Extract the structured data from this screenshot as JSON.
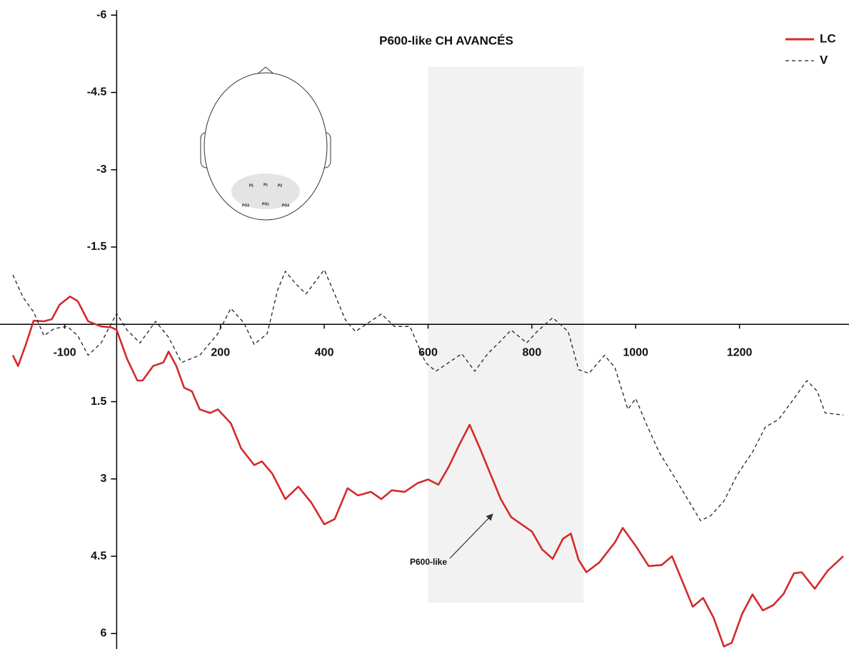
{
  "chart_data": {
    "type": "line",
    "title": "P600-like CH AVANCÉS",
    "xlim": [
      -200,
      1400
    ],
    "xticks": [
      -100,
      200,
      400,
      600,
      800,
      1000,
      1200
    ],
    "ylim": [
      -6.1,
      6.3
    ],
    "yticks": [
      -6,
      -4.5,
      -3,
      -1.5,
      1.5,
      3,
      4.5,
      6
    ],
    "y_inverted": true,
    "legend": "top-right",
    "shaded_region": {
      "x": [
        600,
        900
      ],
      "y": [
        -5,
        5.4
      ],
      "color": "#f2f2f2"
    },
    "annotation": {
      "text": "P600-like"
    },
    "electrodes": [
      "P1",
      "Pz",
      "P2",
      "PO3",
      "POz",
      "PO4"
    ],
    "series": [
      {
        "name": "LC",
        "color": "#d42a2a",
        "dash": false,
        "x": [
          -200,
          -190,
          -175,
          -160,
          -140,
          -125,
          -110,
          -90,
          -75,
          -55,
          -30,
          -10,
          0,
          20,
          40,
          50,
          70,
          90,
          100,
          115,
          130,
          145,
          160,
          180,
          195,
          220,
          240,
          265,
          280,
          300,
          325,
          350,
          375,
          400,
          420,
          445,
          465,
          490,
          510,
          530,
          555,
          580,
          600,
          620,
          640,
          660,
          680,
          700,
          720,
          740,
          760,
          780,
          800,
          820,
          840,
          860,
          875,
          890,
          905,
          930,
          960,
          975,
          1000,
          1025,
          1050,
          1070,
          1090,
          1110,
          1130,
          1150,
          1170,
          1185,
          1205,
          1225,
          1245,
          1265,
          1285,
          1305,
          1320,
          1345,
          1370,
          1400
        ],
        "values": [
          0.6,
          0.81,
          0.39,
          -0.07,
          -0.06,
          -0.1,
          -0.38,
          -0.54,
          -0.45,
          -0.06,
          0.04,
          0.06,
          0.11,
          0.67,
          1.09,
          1.09,
          0.81,
          0.74,
          0.53,
          0.81,
          1.23,
          1.3,
          1.65,
          1.72,
          1.65,
          1.92,
          2.41,
          2.73,
          2.66,
          2.9,
          3.39,
          3.15,
          3.46,
          3.88,
          3.78,
          3.18,
          3.32,
          3.25,
          3.39,
          3.22,
          3.25,
          3.08,
          3.01,
          3.11,
          2.76,
          2.34,
          1.95,
          2.41,
          2.9,
          3.39,
          3.74,
          3.88,
          4.02,
          4.37,
          4.55,
          4.16,
          4.06,
          4.57,
          4.81,
          4.62,
          4.23,
          3.95,
          4.3,
          4.69,
          4.67,
          4.5,
          4.99,
          5.48,
          5.31,
          5.69,
          6.25,
          6.18,
          5.62,
          5.24,
          5.55,
          5.45,
          5.23,
          4.83,
          4.81,
          5.13,
          4.78,
          4.5
        ]
      },
      {
        "name": "V",
        "color": "#222222",
        "dash": true,
        "x": [
          -200,
          -180,
          -160,
          -140,
          -120,
          -95,
          -75,
          -55,
          -30,
          0,
          20,
          45,
          75,
          100,
          125,
          160,
          195,
          220,
          245,
          265,
          290,
          310,
          325,
          345,
          365,
          385,
          400,
          420,
          440,
          460,
          485,
          510,
          535,
          565,
          595,
          615,
          640,
          665,
          690,
          715,
          740,
          760,
          790,
          810,
          840,
          870,
          890,
          910,
          940,
          960,
          985,
          1000,
          1020,
          1045,
          1075,
          1100,
          1125,
          1145,
          1170,
          1195,
          1225,
          1250,
          1275,
          1300,
          1330,
          1350,
          1365,
          1400
        ],
        "values": [
          -0.96,
          -0.52,
          -0.24,
          0.22,
          0.08,
          0.04,
          0.22,
          0.6,
          0.36,
          -0.21,
          0.11,
          0.36,
          -0.06,
          0.25,
          0.74,
          0.6,
          0.18,
          -0.31,
          -0.03,
          0.39,
          0.18,
          -0.66,
          -1.03,
          -0.79,
          -0.59,
          -0.86,
          -1.06,
          -0.59,
          -0.1,
          0.14,
          -0.03,
          -0.2,
          0.04,
          0.04,
          0.74,
          0.91,
          0.74,
          0.57,
          0.91,
          0.57,
          0.32,
          0.11,
          0.36,
          0.14,
          -0.13,
          0.14,
          0.88,
          0.95,
          0.6,
          0.84,
          1.65,
          1.44,
          1.92,
          2.48,
          2.97,
          3.39,
          3.81,
          3.71,
          3.43,
          2.93,
          2.48,
          1.99,
          1.85,
          1.51,
          1.09,
          1.3,
          1.72,
          1.76
        ]
      }
    ]
  }
}
